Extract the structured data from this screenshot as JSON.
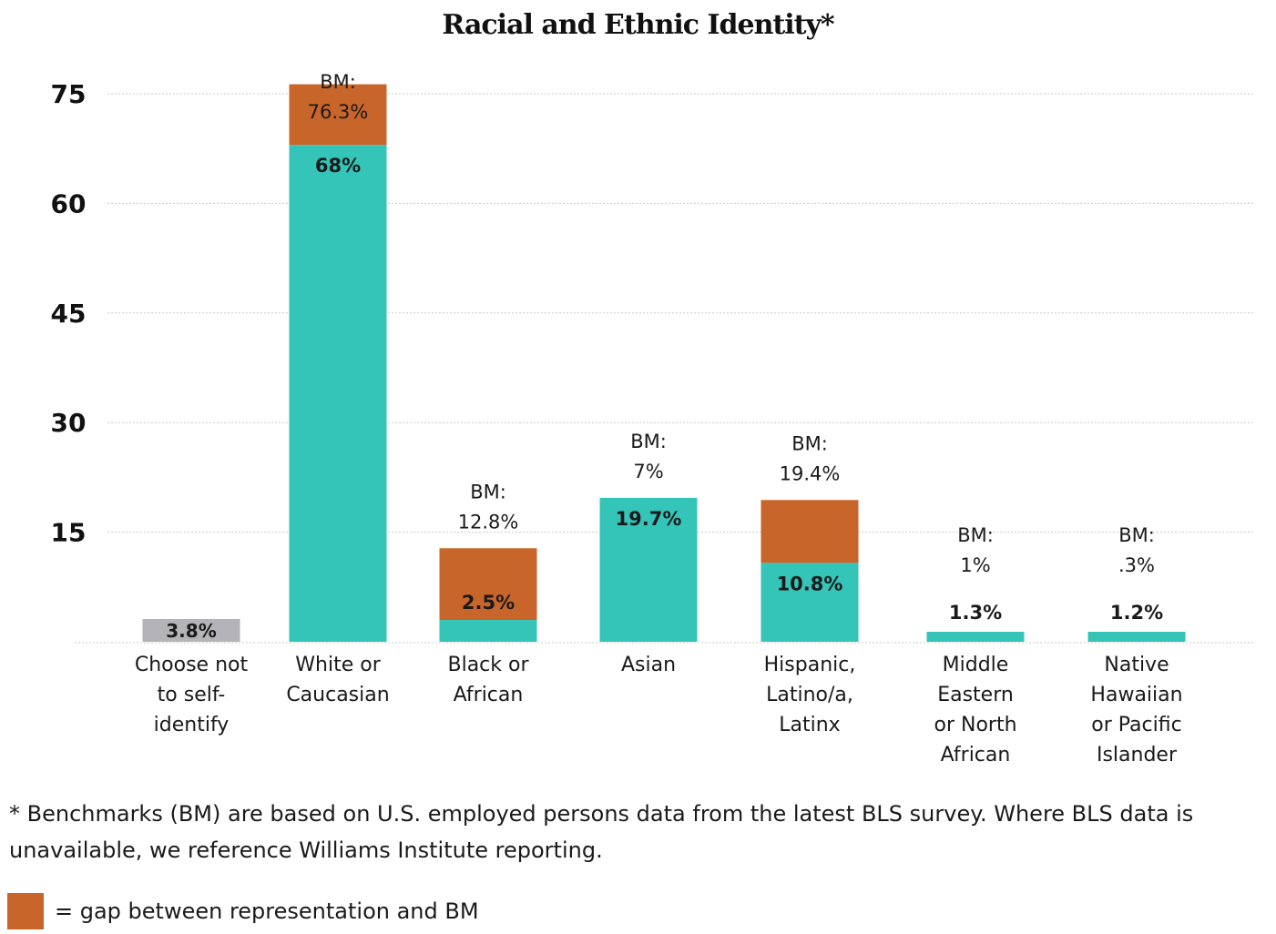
{
  "chart_data": {
    "type": "bar",
    "title": "Racial and Ethnic Identity*",
    "ylim": [
      0,
      75
    ],
    "yticks": [
      15,
      30,
      45,
      60,
      75
    ],
    "grid": true,
    "categories": [
      "Choose not to self-identify",
      "White or Caucasian",
      "Black or African",
      "Asian",
      "Hispanic, Latino/a, Latinx",
      "Middle Eastern or North African",
      "Native Hawaiian or Pacific Islander"
    ],
    "category_lines": [
      [
        "Choose not",
        "to self-",
        "identify"
      ],
      [
        "White or",
        "Caucasian"
      ],
      [
        "Black or",
        "African"
      ],
      [
        "Asian"
      ],
      [
        "Hispanic,",
        "Latino/a,",
        "Latinx"
      ],
      [
        "Middle",
        "Eastern",
        "or North",
        "African"
      ],
      [
        "Native",
        "Hawaiian",
        "or Pacific",
        "Islander"
      ]
    ],
    "series": [
      {
        "name": "Representation",
        "values": [
          3.8,
          68,
          2.5,
          19.7,
          10.8,
          1.3,
          1.2
        ]
      },
      {
        "name": "Benchmark (BM)",
        "values": [
          null,
          76.3,
          12.8,
          7,
          19.4,
          1,
          0.3
        ]
      }
    ],
    "value_labels": [
      "3.8%",
      "68%",
      "2.5%",
      "19.7%",
      "10.8%",
      "1.3%",
      "1.2%"
    ],
    "bm_labels": [
      "",
      "76.3%",
      "12.8%",
      "7%",
      "19.4%",
      "1%",
      ".3%"
    ],
    "bm_prefix": "BM:",
    "colors": {
      "representation": "#35c4b8",
      "gap": "#c8652b",
      "no_answer": "#b3b3b8",
      "grid": "#c9c9c9",
      "text": "#1a1a1a"
    }
  },
  "footnote": "* Benchmarks (BM) are based on U.S. employed persons data from the latest BLS survey. Where BLS data is unavailable, we reference Williams Institute reporting.",
  "legend": {
    "label": "= gap between representation and BM",
    "swatch_color": "#c8652b"
  }
}
